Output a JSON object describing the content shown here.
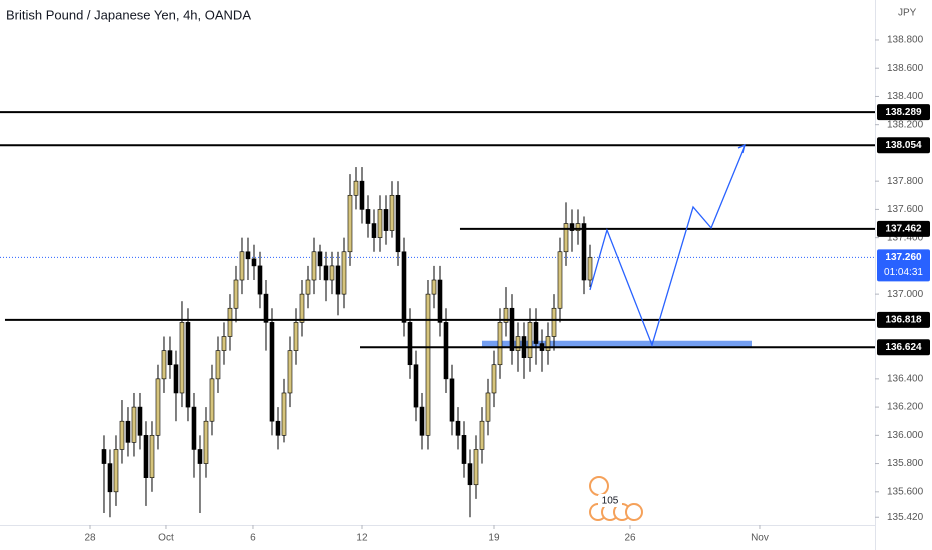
{
  "chart_data": {
    "type": "candlestick",
    "title": "British Pound / Japanese Yen, 4h, OANDA",
    "currency": "JPY",
    "up_color": "#d6c47c",
    "down_color": "#000000",
    "open": [
      135.9,
      135.8,
      135.6,
      135.9,
      136.1,
      135.95,
      136.2,
      136.0,
      135.7,
      136.0,
      136.4,
      136.6,
      136.5,
      136.3,
      136.8,
      136.2,
      135.9,
      135.8,
      136.1,
      136.4,
      136.6,
      136.7,
      136.9,
      137.1,
      137.3,
      137.25,
      137.2,
      137.0,
      136.8,
      136.1,
      136.0,
      136.3,
      136.6,
      136.8,
      137.0,
      137.1,
      137.3,
      137.2,
      137.1,
      137.2,
      137.0,
      137.3,
      137.7,
      137.8,
      137.6,
      137.5,
      137.4,
      137.6,
      137.45,
      137.7,
      137.3,
      136.8,
      136.5,
      136.2,
      136.0,
      137.0,
      137.1,
      136.8,
      136.4,
      136.1,
      136.0,
      135.8,
      135.65,
      135.9,
      136.1,
      136.3,
      136.5,
      136.8,
      136.9,
      136.6,
      136.7,
      136.55,
      136.8,
      136.65,
      136.6,
      136.7,
      136.9,
      137.3,
      137.5,
      137.45,
      137.5,
      137.1
    ],
    "high": [
      136.0,
      135.9,
      136.0,
      136.25,
      136.2,
      136.3,
      136.3,
      136.1,
      136.1,
      136.5,
      136.7,
      136.7,
      136.6,
      136.95,
      136.9,
      136.3,
      136.0,
      136.2,
      136.5,
      136.7,
      136.8,
      137.0,
      137.2,
      137.4,
      137.4,
      137.35,
      137.3,
      137.1,
      136.9,
      136.2,
      136.4,
      136.7,
      136.9,
      137.1,
      137.2,
      137.4,
      137.35,
      137.3,
      137.3,
      137.3,
      137.4,
      137.85,
      137.9,
      137.9,
      137.7,
      137.6,
      137.7,
      137.7,
      137.8,
      137.8,
      137.4,
      136.9,
      136.6,
      136.3,
      137.1,
      137.2,
      137.2,
      136.9,
      136.5,
      136.2,
      136.1,
      135.9,
      136.0,
      136.2,
      136.4,
      136.6,
      136.9,
      137.05,
      137.0,
      136.8,
      136.8,
      136.9,
      136.9,
      136.75,
      136.8,
      137.0,
      137.4,
      137.65,
      137.6,
      137.6,
      137.55,
      137.35
    ],
    "low": [
      135.45,
      135.42,
      135.5,
      135.8,
      135.85,
      135.85,
      135.9,
      135.5,
      135.6,
      135.9,
      136.3,
      136.4,
      136.1,
      136.2,
      136.1,
      135.7,
      135.45,
      135.7,
      136.0,
      136.3,
      136.5,
      136.6,
      136.8,
      137.0,
      137.1,
      137.1,
      136.9,
      136.6,
      136.0,
      135.9,
      135.95,
      136.2,
      136.5,
      136.7,
      136.9,
      137.0,
      137.1,
      136.95,
      137.0,
      136.85,
      136.9,
      137.2,
      137.6,
      137.5,
      137.4,
      137.3,
      137.3,
      137.35,
      137.4,
      137.2,
      136.7,
      136.4,
      136.1,
      135.9,
      135.9,
      136.9,
      136.7,
      136.3,
      136.0,
      135.9,
      135.7,
      135.42,
      135.55,
      135.8,
      136.0,
      136.2,
      136.4,
      136.7,
      136.5,
      136.45,
      136.4,
      136.45,
      136.5,
      136.45,
      136.5,
      136.6,
      136.8,
      137.2,
      137.3,
      137.35,
      137.0,
      137.05
    ],
    "close": [
      135.8,
      135.6,
      135.9,
      136.1,
      135.95,
      136.2,
      136.0,
      135.7,
      136.0,
      136.4,
      136.6,
      136.5,
      136.3,
      136.8,
      136.2,
      135.9,
      135.8,
      136.1,
      136.4,
      136.6,
      136.7,
      136.9,
      137.1,
      137.3,
      137.25,
      137.2,
      137.0,
      136.8,
      136.1,
      136.0,
      136.3,
      136.6,
      136.8,
      137.0,
      137.1,
      137.3,
      137.2,
      137.1,
      137.2,
      137.0,
      137.3,
      137.7,
      137.8,
      137.6,
      137.5,
      137.4,
      137.6,
      137.45,
      137.7,
      137.3,
      136.8,
      136.5,
      136.2,
      136.0,
      137.0,
      137.1,
      136.8,
      136.4,
      136.1,
      136.0,
      135.8,
      135.65,
      135.9,
      136.1,
      136.3,
      136.5,
      136.8,
      136.9,
      136.6,
      136.7,
      136.55,
      136.8,
      136.65,
      136.6,
      136.7,
      136.9,
      137.3,
      137.5,
      137.45,
      137.5,
      137.1,
      137.26
    ],
    "xlim": [
      -17.33,
      128.5
    ],
    "xticks": [
      {
        "value": -2.33,
        "label": "28"
      },
      {
        "value": 10.33,
        "label": "Oct"
      },
      {
        "value": 24.83,
        "label": "6"
      },
      {
        "value": 43,
        "label": "12"
      },
      {
        "value": 65,
        "label": "19"
      },
      {
        "value": 87.67,
        "label": "26"
      },
      {
        "value": 109.33,
        "label": "Nov"
      }
    ],
    "ylim": [
      135.365,
      139.083
    ],
    "yticks": [
      {
        "value": 138.8,
        "label": "138.800"
      },
      {
        "value": 138.6,
        "label": "138.600"
      },
      {
        "value": 138.4,
        "label": "138.400"
      },
      {
        "value": 138.2,
        "label": "138.200"
      },
      {
        "value": 137.8,
        "label": "137.800"
      },
      {
        "value": 137.6,
        "label": "137.600"
      },
      {
        "value": 137.4,
        "label": "137.400"
      },
      {
        "value": 137.0,
        "label": "137.000"
      },
      {
        "value": 136.4,
        "label": "136.400"
      },
      {
        "value": 136.2,
        "label": "136.200"
      },
      {
        "value": 136.0,
        "label": "136.000"
      },
      {
        "value": 135.8,
        "label": "135.800"
      },
      {
        "value": 135.6,
        "label": "135.600"
      },
      {
        "value": 135.42,
        "label": "135.420"
      }
    ],
    "levels": [
      {
        "value": 138.289,
        "x_start": -17.33
      },
      {
        "value": 138.054,
        "x_start": -17.33
      },
      {
        "value": 137.462,
        "x_start": 59.33
      },
      {
        "value": 136.818,
        "x_start": -16.5
      },
      {
        "value": 136.624,
        "x_start": 42.67
      }
    ],
    "current_price": {
      "value": 137.26,
      "label": "137.260",
      "countdown": "01:04:31"
    },
    "zone": {
      "x": [
        63,
        108
      ],
      "y": [
        136.62,
        136.67
      ]
    },
    "projection": {
      "x": [
        81,
        83.83,
        91.33,
        98.17,
        101.17,
        106.83
      ],
      "y": [
        137.03,
        137.454,
        136.64,
        137.617,
        137.469,
        138.056
      ]
    },
    "event_count": "105"
  }
}
